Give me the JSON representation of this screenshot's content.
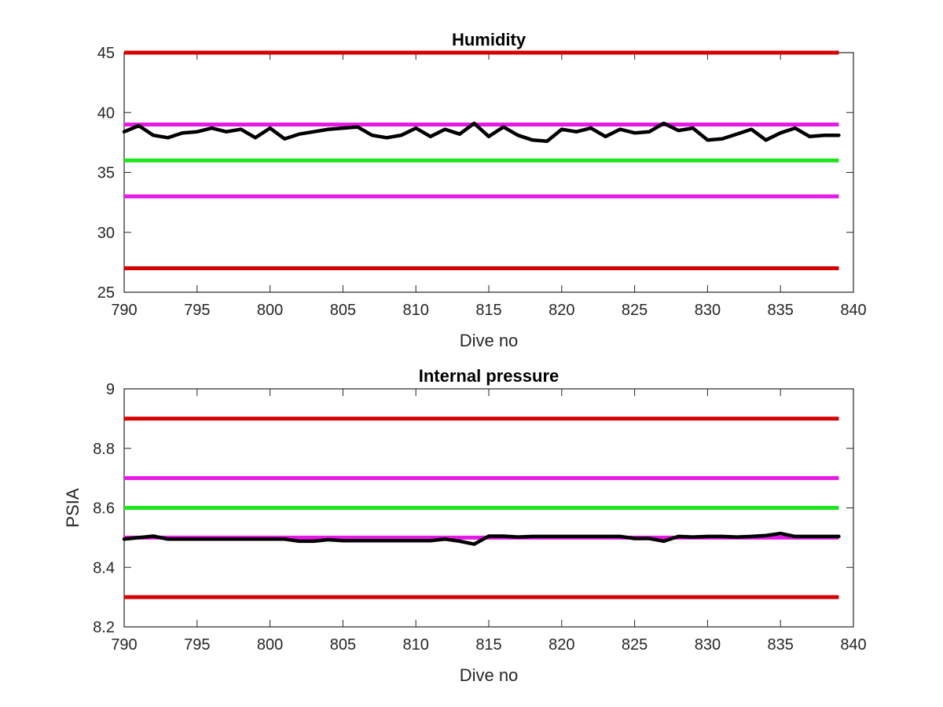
{
  "chart_data": [
    {
      "type": "line",
      "title": "Humidity",
      "xlabel": "Dive no",
      "ylabel": "",
      "xlim": [
        790,
        840
      ],
      "ylim": [
        25,
        45
      ],
      "xticks": [
        "790",
        "795",
        "800",
        "805",
        "810",
        "815",
        "820",
        "825",
        "830",
        "835",
        "840"
      ],
      "yticks": [
        "25",
        "30",
        "35",
        "40",
        "45"
      ],
      "grid": false,
      "reference_lines": [
        {
          "y": 45,
          "color": "#d40000"
        },
        {
          "y": 39,
          "color": "#e619e6"
        },
        {
          "y": 36,
          "color": "#1ee61e"
        },
        {
          "y": 33,
          "color": "#e619e6"
        },
        {
          "y": 27,
          "color": "#d40000"
        }
      ],
      "series": [
        {
          "color": "#000000",
          "x": [
            790,
            791,
            792,
            793,
            794,
            795,
            796,
            797,
            798,
            799,
            800,
            801,
            802,
            803,
            804,
            805,
            806,
            807,
            808,
            809,
            810,
            811,
            812,
            813,
            814,
            815,
            816,
            817,
            818,
            819,
            820,
            821,
            822,
            823,
            824,
            825,
            826,
            827,
            828,
            829,
            830,
            831,
            832,
            833,
            834,
            835,
            836,
            837,
            838,
            839
          ],
          "y": [
            38.4,
            38.9,
            38.1,
            37.9,
            38.3,
            38.4,
            38.7,
            38.4,
            38.6,
            37.9,
            38.7,
            37.8,
            38.2,
            38.4,
            38.6,
            38.7,
            38.8,
            38.1,
            37.9,
            38.1,
            38.7,
            38.0,
            38.6,
            38.2,
            39.1,
            38.0,
            38.8,
            38.1,
            37.7,
            37.6,
            38.6,
            38.4,
            38.7,
            38.0,
            38.6,
            38.3,
            38.4,
            39.1,
            38.5,
            38.7,
            37.7,
            37.8,
            38.2,
            38.6,
            37.7,
            38.3,
            38.7,
            38.0,
            38.1,
            38.1
          ]
        }
      ]
    },
    {
      "type": "line",
      "title": "Internal pressure",
      "xlabel": "Dive no",
      "ylabel": "PSIA",
      "xlim": [
        790,
        840
      ],
      "ylim": [
        8.2,
        9
      ],
      "xticks": [
        "790",
        "795",
        "800",
        "805",
        "810",
        "815",
        "820",
        "825",
        "830",
        "835",
        "840"
      ],
      "yticks": [
        "8.2",
        "8.4",
        "8.6",
        "8.8",
        "9"
      ],
      "grid": false,
      "reference_lines": [
        {
          "y": 8.9,
          "color": "#d40000"
        },
        {
          "y": 8.7,
          "color": "#e619e6"
        },
        {
          "y": 8.6,
          "color": "#1ee61e"
        },
        {
          "y": 8.5,
          "color": "#e619e6"
        },
        {
          "y": 8.3,
          "color": "#d40000"
        }
      ],
      "series": [
        {
          "color": "#000000",
          "x": [
            790,
            791,
            792,
            793,
            794,
            795,
            796,
            797,
            798,
            799,
            800,
            801,
            802,
            803,
            804,
            805,
            806,
            807,
            808,
            809,
            810,
            811,
            812,
            813,
            814,
            815,
            816,
            817,
            818,
            819,
            820,
            821,
            822,
            823,
            824,
            825,
            826,
            827,
            828,
            829,
            830,
            831,
            832,
            833,
            834,
            835,
            836,
            837,
            838,
            839
          ],
          "y": [
            8.495,
            8.5,
            8.505,
            8.495,
            8.495,
            8.495,
            8.495,
            8.495,
            8.495,
            8.495,
            8.495,
            8.495,
            8.488,
            8.488,
            8.493,
            8.49,
            8.49,
            8.49,
            8.49,
            8.49,
            8.49,
            8.49,
            8.495,
            8.488,
            8.478,
            8.505,
            8.505,
            8.502,
            8.504,
            8.504,
            8.504,
            8.504,
            8.504,
            8.504,
            8.504,
            8.497,
            8.497,
            8.488,
            8.504,
            8.502,
            8.504,
            8.504,
            8.502,
            8.504,
            8.507,
            8.514,
            8.504,
            8.504,
            8.504,
            8.504
          ]
        }
      ]
    }
  ]
}
